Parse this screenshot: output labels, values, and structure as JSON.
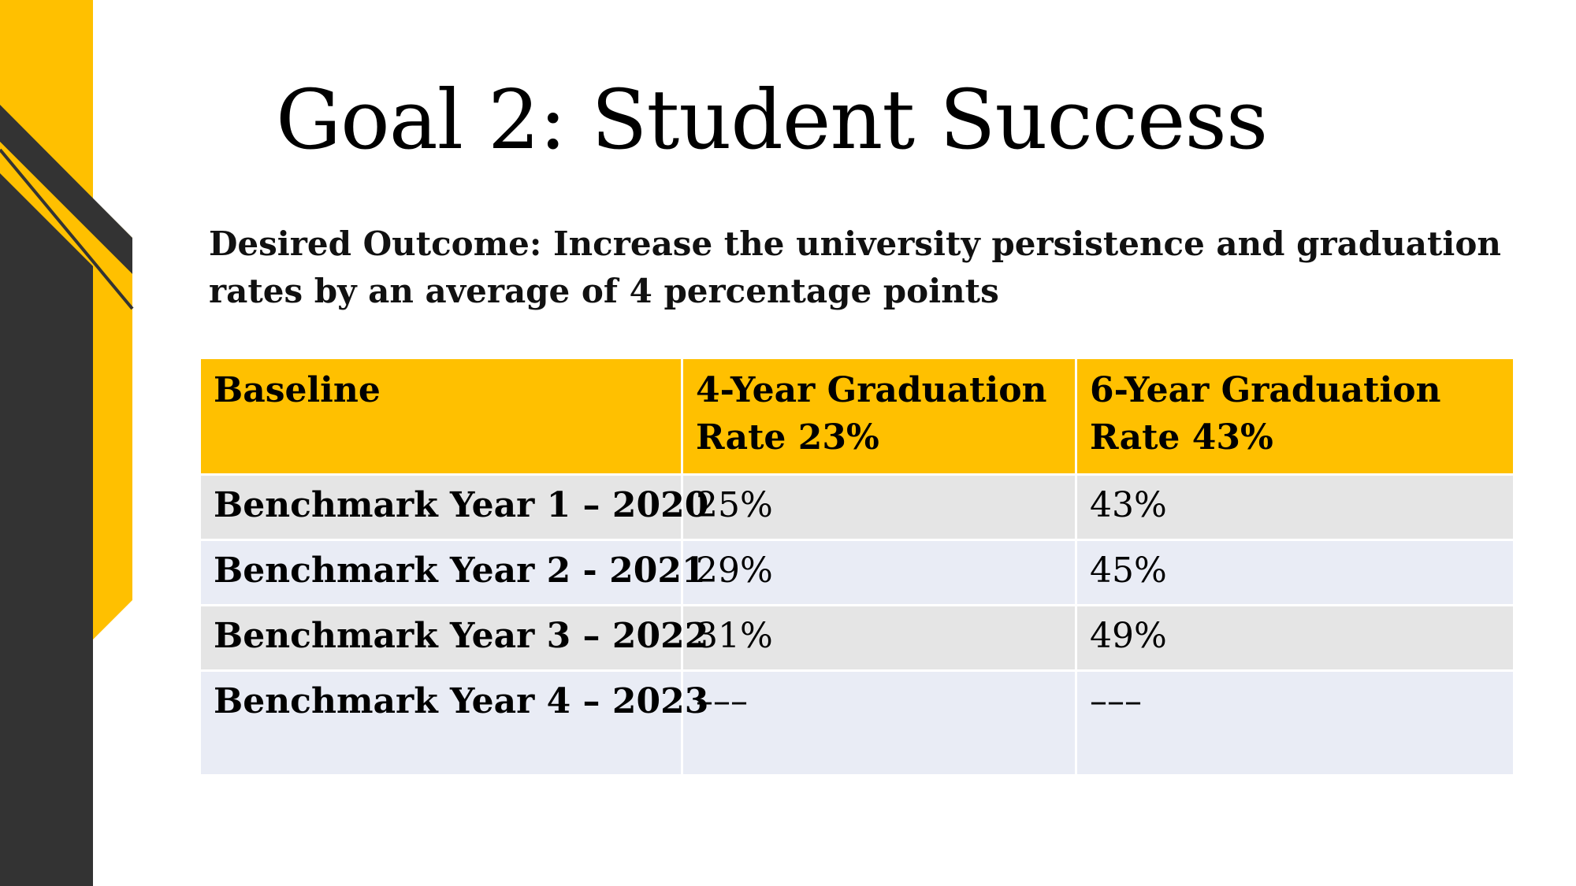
{
  "slide": {
    "title": "Goal 2:  Student Success",
    "outcome": "Desired Outcome:  Increase the university persistence and graduation rates by an average of 4 percentage points"
  },
  "colors": {
    "accent": "#ffc000",
    "dark": "#333333",
    "row_gray": "#e5e5e5",
    "row_blue": "#e9ecf5"
  },
  "table": {
    "headers": [
      "Baseline",
      "4-Year Graduation Rate 23%",
      "6-Year Graduation Rate 43%"
    ],
    "rows": [
      {
        "label": "Benchmark Year 1 – 2020",
        "four_year": "25%",
        "six_year": "43%"
      },
      {
        "label": "Benchmark Year 2 -  2021",
        "four_year": "29%",
        "six_year": "45%"
      },
      {
        "label": "Benchmark Year 3 – 2022",
        "four_year": "31%",
        "six_year": "49%"
      },
      {
        "label": "Benchmark Year 4 – 2023",
        "four_year": "–––",
        "six_year": "–––"
      }
    ]
  }
}
